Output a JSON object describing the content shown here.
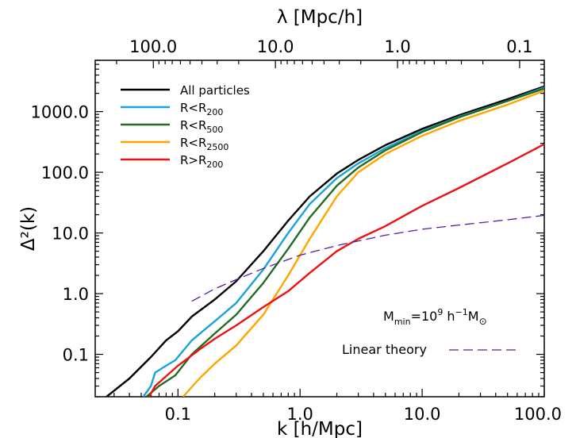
{
  "chart_data": {
    "type": "line",
    "title": "",
    "xscale": "log",
    "yscale": "log",
    "xlim": [
      0.021,
      100
    ],
    "ylim": [
      0.02,
      7000
    ],
    "xlabel": "k [h/Mpc]",
    "ylabel": "Δ²(k)",
    "top_axis_label": "λ [Mpc/h]",
    "x_tick_labels": [
      "0.1",
      "1.0",
      "10.0",
      "100.0"
    ],
    "x_ticks": [
      0.1,
      1,
      10,
      100
    ],
    "top_tick_labels": [
      "100.0",
      "10.0",
      "1.0",
      "0.1"
    ],
    "top_ticks_lambda": [
      100,
      10,
      1,
      0.1
    ],
    "y_tick_labels": [
      "0.1",
      "1.0",
      "10.0",
      "100.0",
      "1000.0"
    ],
    "y_ticks": [
      0.1,
      1,
      10,
      100,
      1000
    ],
    "grid": false,
    "legend_position": "top-left",
    "annotation": {
      "main": "M",
      "sub": "min",
      "mid": "=10",
      "sup": "9",
      "unit": " h",
      "unit_sup": "−1",
      "unit2": "M",
      "unit2_sub": "⊙"
    },
    "series": [
      {
        "name": "All particles",
        "name_main": "All particles",
        "name_sub": "",
        "color": "#000000",
        "dash": false,
        "x": [
          0.026,
          0.04,
          0.06,
          0.08,
          0.1,
          0.13,
          0.2,
          0.3,
          0.5,
          0.8,
          1.2,
          2,
          3,
          5,
          10,
          20,
          50,
          100
        ],
        "y": [
          0.02,
          0.04,
          0.09,
          0.17,
          0.24,
          0.42,
          0.8,
          1.6,
          5,
          16,
          40,
          95,
          160,
          280,
          520,
          870,
          1600,
          2600
        ]
      },
      {
        "name": "R<R200",
        "name_main": "R<R",
        "name_sub": "200",
        "color": "#1aa3d9",
        "dash": false,
        "x": [
          0.052,
          0.06,
          0.065,
          0.08,
          0.095,
          0.13,
          0.2,
          0.3,
          0.5,
          0.8,
          1.2,
          2,
          3,
          5,
          10,
          20,
          50,
          100
        ],
        "y": [
          0.02,
          0.03,
          0.05,
          0.065,
          0.08,
          0.17,
          0.35,
          0.7,
          2.5,
          10,
          30,
          80,
          140,
          250,
          480,
          820,
          1500,
          2500
        ]
      },
      {
        "name": "R<R500",
        "name_main": "R<R",
        "name_sub": "500",
        "color": "#226b22",
        "dash": false,
        "x": [
          0.055,
          0.07,
          0.095,
          0.13,
          0.2,
          0.3,
          0.5,
          0.8,
          1.2,
          2,
          3,
          5,
          10,
          20,
          50,
          100
        ],
        "y": [
          0.02,
          0.03,
          0.045,
          0.1,
          0.22,
          0.45,
          1.5,
          5.5,
          18,
          60,
          120,
          230,
          460,
          800,
          1500,
          2400
        ]
      },
      {
        "name": "R<R2500",
        "name_main": "R<R",
        "name_sub": "2500",
        "color": "#ffa500",
        "dash": false,
        "x": [
          0.11,
          0.15,
          0.2,
          0.3,
          0.5,
          0.8,
          1.2,
          2,
          3,
          5,
          10,
          20,
          50,
          100
        ],
        "y": [
          0.02,
          0.04,
          0.07,
          0.14,
          0.45,
          2,
          8,
          40,
          100,
          200,
          400,
          700,
          1300,
          2200
        ]
      },
      {
        "name": "R>R200",
        "name_main": "R>R",
        "name_sub": "200",
        "color": "#ee1111",
        "dash": false,
        "x": [
          0.058,
          0.065,
          0.1,
          0.15,
          0.2,
          0.3,
          0.5,
          0.8,
          1.2,
          2,
          3,
          5,
          10,
          20,
          50,
          100
        ],
        "y": [
          0.02,
          0.03,
          0.065,
          0.12,
          0.18,
          0.3,
          0.6,
          1.1,
          2.2,
          5,
          8,
          13,
          28,
          55,
          140,
          290
        ]
      },
      {
        "name": "Linear theory",
        "name_main": "Linear theory",
        "name_sub": "",
        "color": "#5b1a9e",
        "dash": true,
        "x": [
          0.13,
          0.2,
          0.3,
          0.5,
          1,
          2,
          5,
          10,
          20,
          50,
          100
        ],
        "y": [
          0.75,
          1.2,
          1.7,
          2.6,
          4.3,
          6.2,
          9.2,
          11.5,
          13.5,
          16.5,
          19.5
        ]
      }
    ]
  }
}
